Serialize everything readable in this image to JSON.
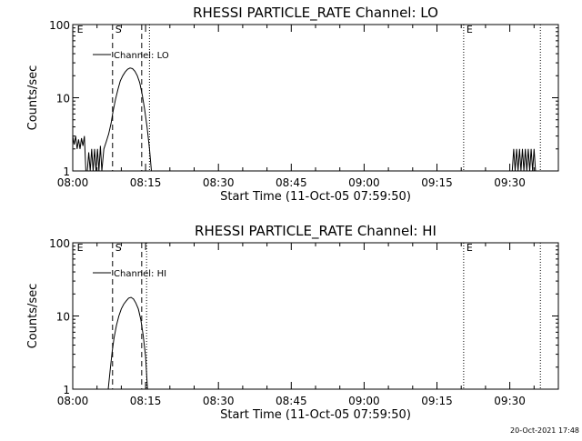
{
  "footer_timestamp": "20-Oct-2021 17:48",
  "chart_data": [
    {
      "type": "line",
      "title": "RHESSI PARTICLE_RATE Channel: LO",
      "xlabel": "Start Time (11-Oct-05 07:59:50)",
      "ylabel": "Counts/sec",
      "yscale": "log",
      "ylim": [
        1,
        100
      ],
      "xlim_minutes": [
        0,
        100
      ],
      "x_ticks": [
        {
          "label": "08:00",
          "minute": 0
        },
        {
          "label": "08:15",
          "minute": 15
        },
        {
          "label": "08:30",
          "minute": 30
        },
        {
          "label": "08:45",
          "minute": 45
        },
        {
          "label": "09:00",
          "minute": 60
        },
        {
          "label": "09:15",
          "minute": 75
        },
        {
          "label": "09:30",
          "minute": 90
        }
      ],
      "y_ticks": [
        {
          "label": "1",
          "value": 1
        },
        {
          "label": "10",
          "value": 10
        },
        {
          "label": "100",
          "value": 100
        }
      ],
      "legend": {
        "label": "Channel: LO",
        "position": "top-left"
      },
      "markers": [
        {
          "label": "E",
          "minute": 0.3,
          "style": "none"
        },
        {
          "label": "S",
          "minute": 8.2,
          "style": "dashed"
        },
        {
          "label": "",
          "minute": 14.2,
          "style": "dashed"
        },
        {
          "label": "",
          "minute": 15.8,
          "style": "dotted"
        },
        {
          "label": "E",
          "minute": 80.5,
          "style": "dotted"
        },
        {
          "label": "",
          "minute": 96.3,
          "style": "dotted"
        }
      ],
      "series": [
        {
          "name": "Channel: LO",
          "segments": [
            [
              [
                0.0,
                3.0
              ],
              [
                0.3,
                2.3
              ],
              [
                0.6,
                3.0
              ],
              [
                0.9,
                2.0
              ],
              [
                1.2,
                2.7
              ],
              [
                1.5,
                2.0
              ],
              [
                1.8,
                2.8
              ],
              [
                2.1,
                2.2
              ],
              [
                2.4,
                3.0
              ],
              [
                2.7,
                1.0
              ]
            ],
            [
              [
                3.0,
                1.0
              ],
              [
                3.3,
                1.8
              ],
              [
                3.6,
                1.0
              ],
              [
                3.9,
                2.0
              ],
              [
                4.2,
                1.0
              ],
              [
                4.5,
                2.0
              ],
              [
                4.8,
                1.0
              ],
              [
                5.1,
                2.0
              ],
              [
                5.4,
                1.0
              ],
              [
                5.7,
                2.2
              ],
              [
                6.0,
                1.0
              ],
              [
                6.4,
                2.0
              ],
              [
                6.9,
                2.5
              ],
              [
                7.4,
                3.2
              ],
              [
                7.9,
                4.5
              ],
              [
                8.3,
                6.5
              ],
              [
                8.8,
                9.5
              ],
              [
                9.3,
                13.0
              ],
              [
                9.8,
                17.0
              ],
              [
                10.3,
                20.0
              ],
              [
                10.8,
                22.5
              ],
              [
                11.3,
                24.5
              ],
              [
                11.8,
                25.5
              ],
              [
                12.3,
                25.0
              ],
              [
                12.8,
                23.0
              ],
              [
                13.3,
                20.0
              ],
              [
                13.8,
                16.0
              ],
              [
                14.3,
                11.0
              ],
              [
                14.8,
                7.0
              ],
              [
                15.3,
                4.0
              ],
              [
                15.8,
                2.0
              ],
              [
                16.2,
                1.0
              ]
            ],
            [
              [
                90.5,
                1.0
              ],
              [
                90.8,
                2.0
              ],
              [
                91.1,
                1.0
              ],
              [
                91.4,
                2.0
              ],
              [
                91.7,
                1.0
              ],
              [
                92.0,
                2.0
              ],
              [
                92.3,
                1.0
              ],
              [
                92.6,
                2.0
              ],
              [
                92.9,
                1.0
              ],
              [
                93.2,
                2.0
              ],
              [
                93.5,
                1.0
              ],
              [
                93.8,
                2.0
              ],
              [
                94.1,
                1.0
              ],
              [
                94.4,
                2.0
              ],
              [
                94.7,
                1.0
              ],
              [
                95.0,
                2.0
              ],
              [
                95.3,
                1.0
              ]
            ]
          ]
        }
      ]
    },
    {
      "type": "line",
      "title": "RHESSI PARTICLE_RATE Channel: HI",
      "xlabel": "Start Time (11-Oct-05 07:59:50)",
      "ylabel": "Counts/sec",
      "yscale": "log",
      "ylim": [
        1,
        100
      ],
      "xlim_minutes": [
        0,
        100
      ],
      "x_ticks": [
        {
          "label": "08:00",
          "minute": 0
        },
        {
          "label": "08:15",
          "minute": 15
        },
        {
          "label": "08:30",
          "minute": 30
        },
        {
          "label": "08:45",
          "minute": 45
        },
        {
          "label": "09:00",
          "minute": 60
        },
        {
          "label": "09:15",
          "minute": 75
        },
        {
          "label": "09:30",
          "minute": 90
        }
      ],
      "y_ticks": [
        {
          "label": "1",
          "value": 1
        },
        {
          "label": "10",
          "value": 10
        },
        {
          "label": "100",
          "value": 100
        }
      ],
      "legend": {
        "label": "Channel: HI",
        "position": "top-left"
      },
      "markers": [
        {
          "label": "E",
          "minute": 0.3,
          "style": "none"
        },
        {
          "label": "S",
          "minute": 8.2,
          "style": "dashed"
        },
        {
          "label": "",
          "minute": 14.2,
          "style": "dashed"
        },
        {
          "label": "",
          "minute": 15.2,
          "style": "dotted"
        },
        {
          "label": "E",
          "minute": 80.5,
          "style": "dotted"
        },
        {
          "label": "",
          "minute": 96.3,
          "style": "dotted"
        }
      ],
      "series": [
        {
          "name": "Channel: HI",
          "segments": [
            [
              [
                7.3,
                1.0
              ],
              [
                7.7,
                1.8
              ],
              [
                8.1,
                3.2
              ],
              [
                8.5,
                5.0
              ],
              [
                9.0,
                7.5
              ],
              [
                9.5,
                10.0
              ],
              [
                10.0,
                12.5
              ],
              [
                10.5,
                14.5
              ],
              [
                11.0,
                16.0
              ],
              [
                11.5,
                17.5
              ],
              [
                12.0,
                18.0
              ],
              [
                12.5,
                17.0
              ],
              [
                13.0,
                15.0
              ],
              [
                13.5,
                12.5
              ],
              [
                14.0,
                9.0
              ],
              [
                14.5,
                5.5
              ],
              [
                15.0,
                2.8
              ],
              [
                15.4,
                1.0
              ]
            ]
          ]
        }
      ]
    }
  ]
}
